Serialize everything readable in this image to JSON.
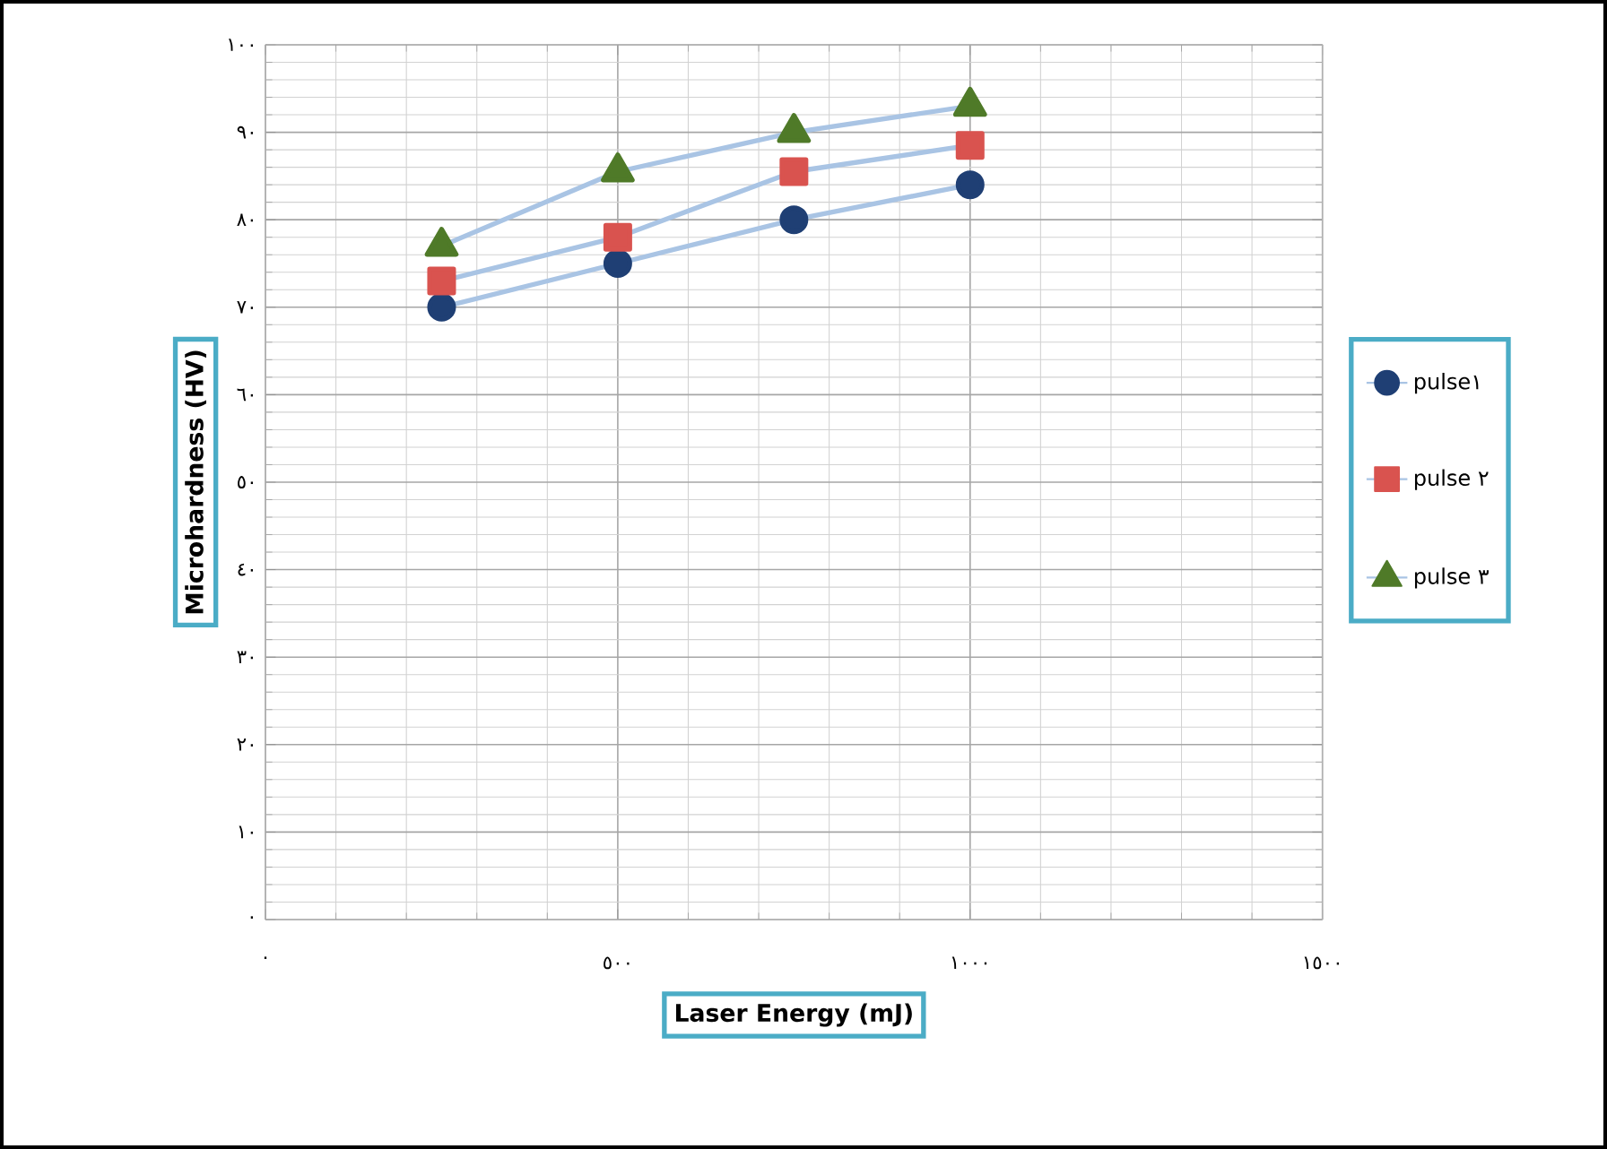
{
  "chart_data": {
    "type": "line",
    "xlabel": "Laser Energy (mJ)",
    "ylabel": "Microhardness (HV)",
    "x": [
      250,
      500,
      750,
      1000
    ],
    "series": [
      {
        "name": "pulse١",
        "color": "#1f3f74",
        "marker": "circle",
        "values": [
          70,
          75,
          80,
          84
        ]
      },
      {
        "name": "pulse ٢",
        "color": "#d9534f",
        "marker": "square",
        "values": [
          73,
          78,
          85.5,
          88.5
        ]
      },
      {
        "name": "pulse ٣",
        "color": "#4f7a28",
        "marker": "triangle",
        "values": [
          77,
          85.5,
          90,
          93
        ]
      }
    ],
    "xlim": [
      0,
      1500
    ],
    "ylim": [
      0,
      100
    ],
    "xticks": [
      {
        "value": 0,
        "label": "٠"
      },
      {
        "value": 500,
        "label": "٥٠٠"
      },
      {
        "value": 1000,
        "label": "١٠٠٠"
      },
      {
        "value": 1500,
        "label": "١٥٠٠"
      }
    ],
    "yticks": [
      {
        "value": 0,
        "label": "٠"
      },
      {
        "value": 10,
        "label": "١٠"
      },
      {
        "value": 20,
        "label": "٢٠"
      },
      {
        "value": 30,
        "label": "٣٠"
      },
      {
        "value": 40,
        "label": "٤٠"
      },
      {
        "value": 50,
        "label": "٥٠"
      },
      {
        "value": 60,
        "label": "٦٠"
      },
      {
        "value": 70,
        "label": "٧٠"
      },
      {
        "value": 80,
        "label": "٨٠"
      },
      {
        "value": 90,
        "label": "٩٠"
      },
      {
        "value": 100,
        "label": "١٠٠"
      }
    ],
    "grid": true,
    "legend": "right",
    "line_style": "solid"
  }
}
